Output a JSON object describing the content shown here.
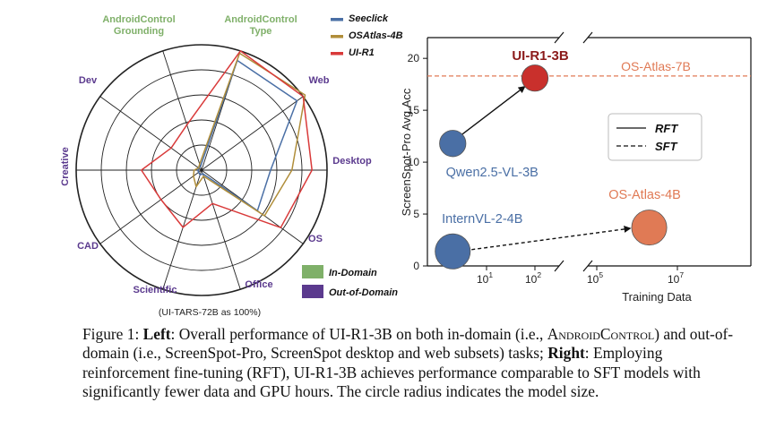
{
  "chart_data": [
    {
      "type": "radar",
      "axes": [
        "AndroidControl Grounding",
        "AndroidControl Type",
        "Web",
        "Desktop",
        "OS",
        "Office",
        "Scientific",
        "CAD",
        "Creative",
        "Dev"
      ],
      "axis_label_lines": [
        [
          "AndroidControl",
          "Grounding"
        ],
        [
          "AndroidControl",
          "Type"
        ],
        [
          "Web"
        ],
        [
          "Desktop"
        ],
        [
          "OS"
        ],
        [
          "Office"
        ],
        [
          "Scientific"
        ],
        [
          "CAD"
        ],
        [
          "Creative"
        ],
        [
          "Dev"
        ]
      ],
      "axis_groups": [
        "In-Domain",
        "In-Domain",
        "Out-of-Domain",
        "Out-of-Domain",
        "Out-of-Domain",
        "Out-of-Domain",
        "Out-of-Domain",
        "Out-of-Domain",
        "Out-of-Domain",
        "Out-of-Domain"
      ],
      "rings": 5,
      "range": [
        0,
        100
      ],
      "series": [
        {
          "name": "Seeclick",
          "color": "#4a6fa5",
          "values": [
            92,
            94,
            55,
            55,
            3,
            4,
            3,
            3,
            3,
            3
          ]
        },
        {
          "name": "OSAtlas-4B",
          "color": "#b08e3a",
          "values": [
            98,
            102,
            72,
            62,
            5,
            14,
            8,
            6,
            3,
            5
          ]
        },
        {
          "name": "UI-R1",
          "color": "#d93a3a",
          "values": [
            100,
            100,
            88,
            78,
            28,
            48,
            40,
            48,
            30,
            38
          ]
        }
      ],
      "legend_groups": [
        {
          "name": "In-Domain",
          "color": "#7fb069"
        },
        {
          "name": "Out-of-Domain",
          "color": "#5b3a8e"
        }
      ],
      "footnote": "(UI-TARS-72B as 100%)"
    },
    {
      "type": "scatter",
      "ylabel": "ScreenSpot-Pro Avg.Acc",
      "xlabel": "Training Data",
      "yticks": [
        "0",
        "5",
        "10",
        "15",
        "20"
      ],
      "ylim": [
        0,
        22
      ],
      "x_ticks_left": [
        {
          "label": "10",
          "exp": "1",
          "value": 10
        },
        {
          "label": "10",
          "exp": "2",
          "value": 100
        }
      ],
      "x_ticks_right": [
        {
          "label": "10",
          "exp": "5",
          "value": 100000
        },
        {
          "label": "10",
          "exp": "7",
          "value": 10000000
        }
      ],
      "points": [
        {
          "name": "Qwen2.5-VL-3B",
          "x": 2,
          "y": 11.8,
          "size": 3,
          "color": "#4a6fa5"
        },
        {
          "name": "UI-R1-3B",
          "x": 100,
          "y": 18.1,
          "size": 3,
          "color": "#c9302c"
        },
        {
          "name": "InternVL-2-4B",
          "x": 2,
          "y": 1.4,
          "size": 4,
          "color": "#4a6fa5"
        },
        {
          "name": "OS-Atlas-4B",
          "x": 2000000,
          "y": 3.7,
          "size": 4,
          "color": "#e07a55"
        }
      ],
      "reference_line": {
        "name": "OS-Atlas-7B",
        "y": 18.3,
        "color": "#e07a55"
      },
      "legend": [
        {
          "name": "RFT",
          "style": "solid"
        },
        {
          "name": "SFT",
          "style": "dashed"
        }
      ]
    }
  ],
  "caption": {
    "left_label": "Left",
    "left_pre": ": Overall performance of UI-R1-3B on both in-domain (i.e., ",
    "left_sc": "AndroidControl",
    "left_post": ") and out-of-domain (i.e., ScreenSpot-Pro, ScreenSpot desktop and web subsets) tasks;",
    "right_label": "Right",
    "right_text": ": Employing reinforcement fine-tuning (RFT), UI-R1-3B achieves performance comparable to SFT models with significantly fewer data and GPU hours. The circle radius indicates the model size.",
    "figure_prefix": "Figure 1: "
  }
}
